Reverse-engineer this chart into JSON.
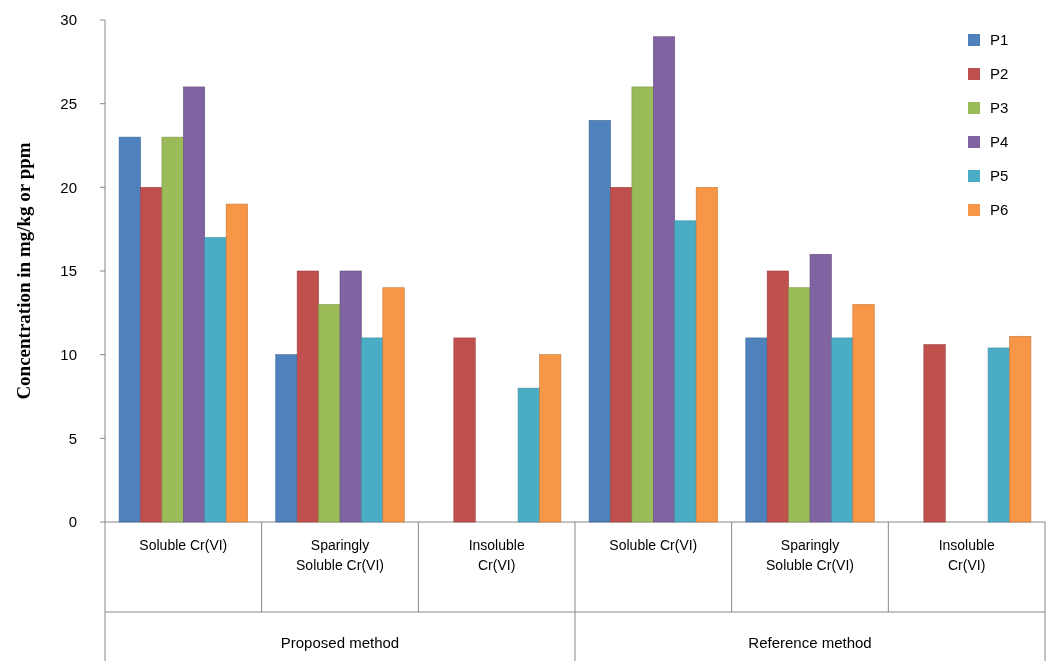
{
  "chart_data": {
    "type": "bar",
    "ylabel": "Concentration in mg/kg or ppm",
    "categories": [
      "Soluble Cr(VI)",
      "Sparingly Soluble Cr(VI)",
      "Insoluble Cr(VI)",
      "Soluble Cr(VI)",
      "Sparingly Soluble Cr(VI)",
      "Insoluble Cr(VI)"
    ],
    "annotations": [
      "Proposed method",
      "Reference method"
    ],
    "series": [
      {
        "name": "P1",
        "color": "#4f81bd",
        "values": [
          23,
          10,
          0,
          24,
          11,
          0
        ]
      },
      {
        "name": "P2",
        "color": "#c0504d",
        "values": [
          20,
          15,
          11,
          20,
          15,
          10.6
        ]
      },
      {
        "name": "P3",
        "color": "#9bbb59",
        "values": [
          23,
          13,
          0,
          26,
          14,
          0
        ]
      },
      {
        "name": "P4",
        "color": "#8064a2",
        "values": [
          26,
          15,
          0,
          29,
          16,
          0
        ]
      },
      {
        "name": "P5",
        "color": "#4bacc6",
        "values": [
          17,
          11,
          8,
          18,
          11,
          10.4
        ]
      },
      {
        "name": "P6",
        "color": "#f79646",
        "values": [
          19,
          14,
          10,
          20,
          13,
          11.1
        ]
      }
    ],
    "ylim": [
      0,
      30
    ],
    "yticks": [
      0,
      5,
      10,
      15,
      20,
      25,
      30
    ],
    "grid": false,
    "legend": "top right"
  }
}
